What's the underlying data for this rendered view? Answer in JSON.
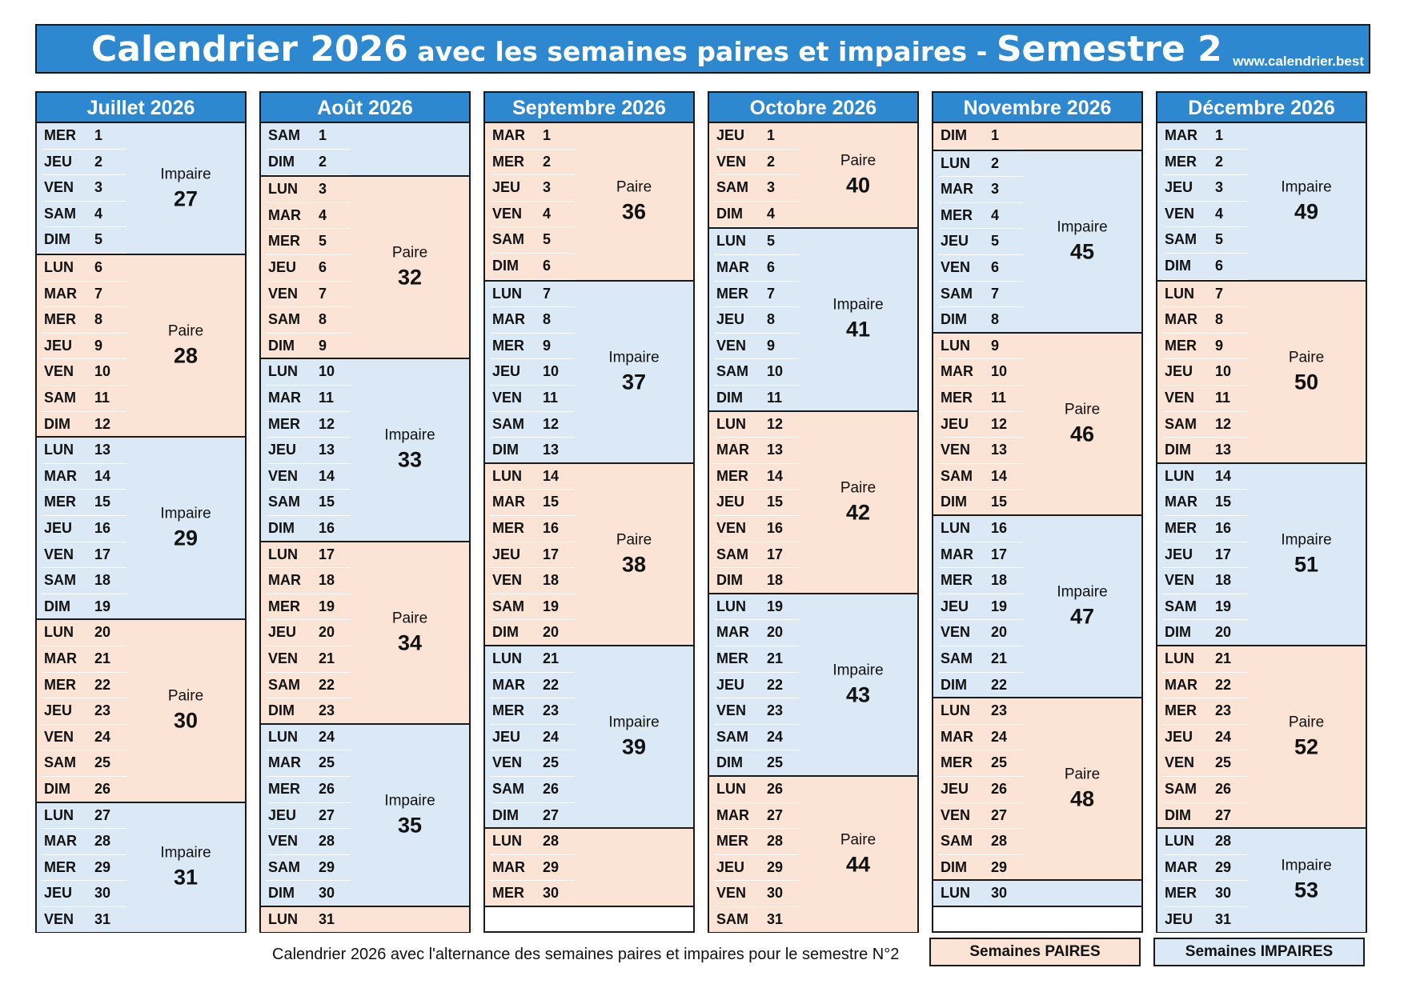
{
  "header": {
    "title_part1": "Calendrier 2026",
    "title_part2": " avec les semaines paires et impaires - ",
    "title_part3": "Semestre 2",
    "website": "www.calendrier.best"
  },
  "months": [
    {
      "name": "Juillet 2026",
      "days": [
        [
          "MER",
          "1"
        ],
        [
          "JEU",
          "2"
        ],
        [
          "VEN",
          "3"
        ],
        [
          "SAM",
          "4"
        ],
        [
          "DIM",
          "5"
        ],
        [
          "LUN",
          "6"
        ],
        [
          "MAR",
          "7"
        ],
        [
          "MER",
          "8"
        ],
        [
          "JEU",
          "9"
        ],
        [
          "VEN",
          "10"
        ],
        [
          "SAM",
          "11"
        ],
        [
          "DIM",
          "12"
        ],
        [
          "LUN",
          "13"
        ],
        [
          "MAR",
          "14"
        ],
        [
          "MER",
          "15"
        ],
        [
          "JEU",
          "16"
        ],
        [
          "VEN",
          "17"
        ],
        [
          "SAM",
          "18"
        ],
        [
          "DIM",
          "19"
        ],
        [
          "LUN",
          "20"
        ],
        [
          "MAR",
          "21"
        ],
        [
          "MER",
          "22"
        ],
        [
          "JEU",
          "23"
        ],
        [
          "VEN",
          "24"
        ],
        [
          "SAM",
          "25"
        ],
        [
          "DIM",
          "26"
        ],
        [
          "LUN",
          "27"
        ],
        [
          "MAR",
          "28"
        ],
        [
          "MER",
          "29"
        ],
        [
          "JEU",
          "30"
        ],
        [
          "VEN",
          "31"
        ]
      ],
      "weeks": [
        {
          "parity": "Impaire",
          "number": "27",
          "days": 5
        },
        {
          "parity": "Paire",
          "number": "28",
          "days": 7
        },
        {
          "parity": "Impaire",
          "number": "29",
          "days": 7
        },
        {
          "parity": "Paire",
          "number": "30",
          "days": 7
        },
        {
          "parity": "Impaire",
          "number": "31",
          "days": 5
        }
      ]
    },
    {
      "name": "Août 2026",
      "days": [
        [
          "SAM",
          "1"
        ],
        [
          "DIM",
          "2"
        ],
        [
          "LUN",
          "3"
        ],
        [
          "MAR",
          "4"
        ],
        [
          "MER",
          "5"
        ],
        [
          "JEU",
          "6"
        ],
        [
          "VEN",
          "7"
        ],
        [
          "SAM",
          "8"
        ],
        [
          "DIM",
          "9"
        ],
        [
          "LUN",
          "10"
        ],
        [
          "MAR",
          "11"
        ],
        [
          "MER",
          "12"
        ],
        [
          "JEU",
          "13"
        ],
        [
          "VEN",
          "14"
        ],
        [
          "SAM",
          "15"
        ],
        [
          "DIM",
          "16"
        ],
        [
          "LUN",
          "17"
        ],
        [
          "MAR",
          "18"
        ],
        [
          "MER",
          "19"
        ],
        [
          "JEU",
          "20"
        ],
        [
          "VEN",
          "21"
        ],
        [
          "SAM",
          "22"
        ],
        [
          "DIM",
          "23"
        ],
        [
          "LUN",
          "24"
        ],
        [
          "MAR",
          "25"
        ],
        [
          "MER",
          "26"
        ],
        [
          "JEU",
          "27"
        ],
        [
          "VEN",
          "28"
        ],
        [
          "SAM",
          "29"
        ],
        [
          "DIM",
          "30"
        ],
        [
          "LUN",
          "31"
        ]
      ],
      "weeks": [
        {
          "parity": "",
          "number": "",
          "days": 2,
          "odd": true
        },
        {
          "parity": "Paire",
          "number": "32",
          "days": 7
        },
        {
          "parity": "Impaire",
          "number": "33",
          "days": 7
        },
        {
          "parity": "Paire",
          "number": "34",
          "days": 7
        },
        {
          "parity": "Impaire",
          "number": "35",
          "days": 7
        },
        {
          "parity": "",
          "number": "",
          "days": 1,
          "odd": false
        }
      ]
    },
    {
      "name": "Septembre 2026",
      "days": [
        [
          "MAR",
          "1"
        ],
        [
          "MER",
          "2"
        ],
        [
          "JEU",
          "3"
        ],
        [
          "VEN",
          "4"
        ],
        [
          "SAM",
          "5"
        ],
        [
          "DIM",
          "6"
        ],
        [
          "LUN",
          "7"
        ],
        [
          "MAR",
          "8"
        ],
        [
          "MER",
          "9"
        ],
        [
          "JEU",
          "10"
        ],
        [
          "VEN",
          "11"
        ],
        [
          "SAM",
          "12"
        ],
        [
          "DIM",
          "13"
        ],
        [
          "LUN",
          "14"
        ],
        [
          "MAR",
          "15"
        ],
        [
          "MER",
          "16"
        ],
        [
          "JEU",
          "17"
        ],
        [
          "VEN",
          "18"
        ],
        [
          "SAM",
          "19"
        ],
        [
          "DIM",
          "20"
        ],
        [
          "LUN",
          "21"
        ],
        [
          "MAR",
          "22"
        ],
        [
          "MER",
          "23"
        ],
        [
          "JEU",
          "24"
        ],
        [
          "VEN",
          "25"
        ],
        [
          "SAM",
          "26"
        ],
        [
          "DIM",
          "27"
        ],
        [
          "LUN",
          "28"
        ],
        [
          "MAR",
          "29"
        ],
        [
          "MER",
          "30"
        ]
      ],
      "weeks": [
        {
          "parity": "Paire",
          "number": "36",
          "days": 6
        },
        {
          "parity": "Impaire",
          "number": "37",
          "days": 7
        },
        {
          "parity": "Paire",
          "number": "38",
          "days": 7
        },
        {
          "parity": "Impaire",
          "number": "39",
          "days": 7
        },
        {
          "parity": "",
          "number": "",
          "days": 3,
          "odd": false
        }
      ]
    },
    {
      "name": "Octobre 2026",
      "days": [
        [
          "JEU",
          "1"
        ],
        [
          "VEN",
          "2"
        ],
        [
          "SAM",
          "3"
        ],
        [
          "DIM",
          "4"
        ],
        [
          "LUN",
          "5"
        ],
        [
          "MAR",
          "6"
        ],
        [
          "MER",
          "7"
        ],
        [
          "JEU",
          "8"
        ],
        [
          "VEN",
          "9"
        ],
        [
          "SAM",
          "10"
        ],
        [
          "DIM",
          "11"
        ],
        [
          "LUN",
          "12"
        ],
        [
          "MAR",
          "13"
        ],
        [
          "MER",
          "14"
        ],
        [
          "JEU",
          "15"
        ],
        [
          "VEN",
          "16"
        ],
        [
          "SAM",
          "17"
        ],
        [
          "DIM",
          "18"
        ],
        [
          "LUN",
          "19"
        ],
        [
          "MAR",
          "20"
        ],
        [
          "MER",
          "21"
        ],
        [
          "JEU",
          "22"
        ],
        [
          "VEN",
          "23"
        ],
        [
          "SAM",
          "24"
        ],
        [
          "DIM",
          "25"
        ],
        [
          "LUN",
          "26"
        ],
        [
          "MAR",
          "27"
        ],
        [
          "MER",
          "28"
        ],
        [
          "JEU",
          "29"
        ],
        [
          "VEN",
          "30"
        ],
        [
          "SAM",
          "31"
        ]
      ],
      "weeks": [
        {
          "parity": "Paire",
          "number": "40",
          "days": 4
        },
        {
          "parity": "Impaire",
          "number": "41",
          "days": 7
        },
        {
          "parity": "Paire",
          "number": "42",
          "days": 7
        },
        {
          "parity": "Impaire",
          "number": "43",
          "days": 7
        },
        {
          "parity": "Paire",
          "number": "44",
          "days": 6
        }
      ]
    },
    {
      "name": "Novembre 2026",
      "days": [
        [
          "DIM",
          "1"
        ],
        [
          "LUN",
          "2"
        ],
        [
          "MAR",
          "3"
        ],
        [
          "MER",
          "4"
        ],
        [
          "JEU",
          "5"
        ],
        [
          "VEN",
          "6"
        ],
        [
          "SAM",
          "7"
        ],
        [
          "DIM",
          "8"
        ],
        [
          "LUN",
          "9"
        ],
        [
          "MAR",
          "10"
        ],
        [
          "MER",
          "11"
        ],
        [
          "JEU",
          "12"
        ],
        [
          "VEN",
          "13"
        ],
        [
          "SAM",
          "14"
        ],
        [
          "DIM",
          "15"
        ],
        [
          "LUN",
          "16"
        ],
        [
          "MAR",
          "17"
        ],
        [
          "MER",
          "18"
        ],
        [
          "JEU",
          "19"
        ],
        [
          "VEN",
          "20"
        ],
        [
          "SAM",
          "21"
        ],
        [
          "DIM",
          "22"
        ],
        [
          "LUN",
          "23"
        ],
        [
          "MAR",
          "24"
        ],
        [
          "MER",
          "25"
        ],
        [
          "JEU",
          "26"
        ],
        [
          "VEN",
          "27"
        ],
        [
          "SAM",
          "28"
        ],
        [
          "DIM",
          "29"
        ],
        [
          "LUN",
          "30"
        ]
      ],
      "weeks": [
        {
          "parity": "",
          "number": "",
          "days": 1,
          "odd": false
        },
        {
          "parity": "Impaire",
          "number": "45",
          "days": 7
        },
        {
          "parity": "Paire",
          "number": "46",
          "days": 7
        },
        {
          "parity": "Impaire",
          "number": "47",
          "days": 7
        },
        {
          "parity": "Paire",
          "number": "48",
          "days": 7
        },
        {
          "parity": "",
          "number": "",
          "days": 1,
          "odd": true
        }
      ]
    },
    {
      "name": "Décembre 2026",
      "days": [
        [
          "MAR",
          "1"
        ],
        [
          "MER",
          "2"
        ],
        [
          "JEU",
          "3"
        ],
        [
          "VEN",
          "4"
        ],
        [
          "SAM",
          "5"
        ],
        [
          "DIM",
          "6"
        ],
        [
          "LUN",
          "7"
        ],
        [
          "MAR",
          "8"
        ],
        [
          "MER",
          "9"
        ],
        [
          "JEU",
          "10"
        ],
        [
          "VEN",
          "11"
        ],
        [
          "SAM",
          "12"
        ],
        [
          "DIM",
          "13"
        ],
        [
          "LUN",
          "14"
        ],
        [
          "MAR",
          "15"
        ],
        [
          "MER",
          "16"
        ],
        [
          "JEU",
          "17"
        ],
        [
          "VEN",
          "18"
        ],
        [
          "SAM",
          "19"
        ],
        [
          "DIM",
          "20"
        ],
        [
          "LUN",
          "21"
        ],
        [
          "MAR",
          "22"
        ],
        [
          "MER",
          "23"
        ],
        [
          "JEU",
          "24"
        ],
        [
          "VEN",
          "25"
        ],
        [
          "SAM",
          "26"
        ],
        [
          "DIM",
          "27"
        ],
        [
          "LUN",
          "28"
        ],
        [
          "MAR",
          "29"
        ],
        [
          "MER",
          "30"
        ],
        [
          "JEU",
          "31"
        ]
      ],
      "weeks": [
        {
          "parity": "Impaire",
          "number": "49",
          "days": 6
        },
        {
          "parity": "Paire",
          "number": "50",
          "days": 7
        },
        {
          "parity": "Impaire",
          "number": "51",
          "days": 7
        },
        {
          "parity": "Paire",
          "number": "52",
          "days": 7
        },
        {
          "parity": "Impaire",
          "number": "53",
          "days": 4
        }
      ]
    }
  ],
  "footer": {
    "caption": "Calendrier 2026 avec l'alternance des semaines paires et impaires pour le semestre N°2",
    "legend_even": "Semaines PAIRES",
    "legend_odd": "Semaines IMPAIRES"
  },
  "colors": {
    "header_blue": "#2e88cf",
    "odd_week_bg": "#dbe9f7",
    "even_week_bg": "#fbe3d6"
  }
}
